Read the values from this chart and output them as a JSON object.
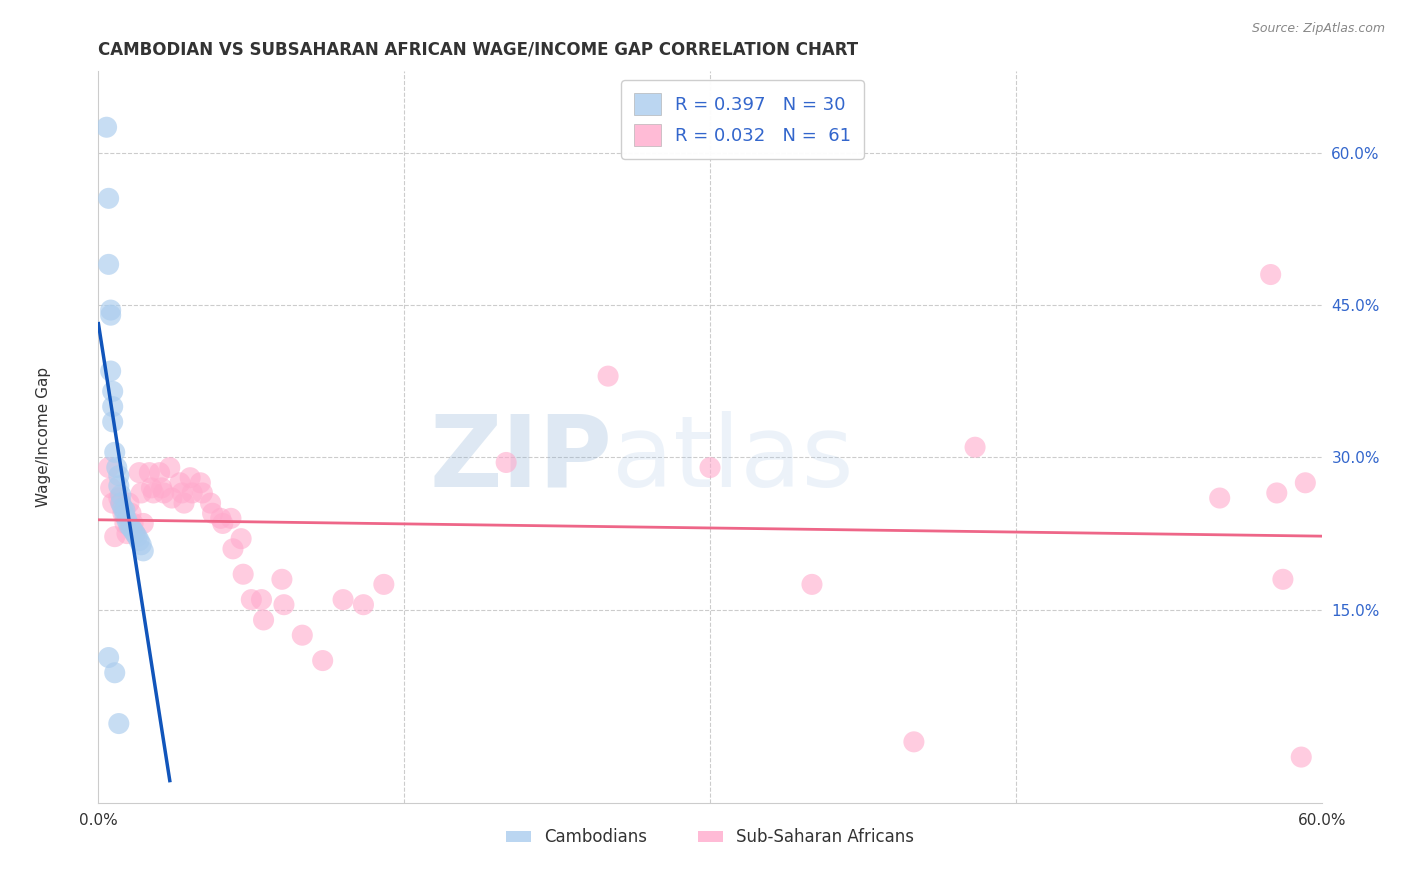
{
  "title": "CAMBODIAN VS SUBSAHARAN AFRICAN WAGE/INCOME GAP CORRELATION CHART",
  "source": "Source: ZipAtlas.com",
  "ylabel": "Wage/Income Gap",
  "R_cambodian": 0.397,
  "N_cambodian": 30,
  "R_african": 0.032,
  "N_african": 61,
  "cambodian_color": "#AACCEE",
  "african_color": "#FFAACC",
  "cambodian_line_color": "#1155BB",
  "african_line_color": "#EE6688",
  "watermark_zip": "ZIP",
  "watermark_atlas": "atlas",
  "legend_cambodian": "Cambodians",
  "legend_african": "Sub-Saharan Africans",
  "xlim": [
    0.0,
    0.6
  ],
  "ylim": [
    -0.04,
    0.68
  ],
  "yticks": [
    0.15,
    0.3,
    0.45,
    0.6
  ],
  "ytick_labels": [
    "15.0%",
    "30.0%",
    "45.0%",
    "60.0%"
  ],
  "xticks": [
    0.0,
    0.15,
    0.3,
    0.45,
    0.6
  ],
  "xtick_labels": [
    "0.0%",
    "",
    "",
    "",
    "60.0%"
  ],
  "cambodian_x": [
    0.004,
    0.005,
    0.005,
    0.006,
    0.006,
    0.006,
    0.007,
    0.007,
    0.007,
    0.008,
    0.009,
    0.01,
    0.01,
    0.011,
    0.011,
    0.012,
    0.013,
    0.013,
    0.014,
    0.015,
    0.016,
    0.017,
    0.018,
    0.019,
    0.02,
    0.021,
    0.022,
    0.005,
    0.008,
    0.01
  ],
  "cambodian_y": [
    0.625,
    0.555,
    0.49,
    0.445,
    0.44,
    0.385,
    0.365,
    0.35,
    0.335,
    0.305,
    0.29,
    0.282,
    0.272,
    0.263,
    0.255,
    0.25,
    0.248,
    0.243,
    0.238,
    0.233,
    0.231,
    0.228,
    0.225,
    0.222,
    0.218,
    0.214,
    0.208,
    0.103,
    0.088,
    0.038
  ],
  "african_x": [
    0.005,
    0.006,
    0.007,
    0.008,
    0.01,
    0.011,
    0.012,
    0.013,
    0.014,
    0.015,
    0.016,
    0.017,
    0.018,
    0.02,
    0.021,
    0.022,
    0.025,
    0.026,
    0.027,
    0.03,
    0.031,
    0.032,
    0.035,
    0.036,
    0.04,
    0.041,
    0.042,
    0.045,
    0.046,
    0.05,
    0.051,
    0.055,
    0.056,
    0.06,
    0.061,
    0.065,
    0.066,
    0.07,
    0.071,
    0.075,
    0.08,
    0.081,
    0.09,
    0.091,
    0.1,
    0.11,
    0.12,
    0.13,
    0.14,
    0.2,
    0.25,
    0.3,
    0.35,
    0.4,
    0.43,
    0.55,
    0.575,
    0.578,
    0.581,
    0.59,
    0.592
  ],
  "african_y": [
    0.29,
    0.27,
    0.255,
    0.222,
    0.26,
    0.255,
    0.245,
    0.235,
    0.225,
    0.255,
    0.245,
    0.235,
    0.225,
    0.285,
    0.265,
    0.235,
    0.285,
    0.27,
    0.265,
    0.285,
    0.27,
    0.265,
    0.29,
    0.26,
    0.275,
    0.265,
    0.255,
    0.28,
    0.265,
    0.275,
    0.265,
    0.255,
    0.245,
    0.24,
    0.235,
    0.24,
    0.21,
    0.22,
    0.185,
    0.16,
    0.16,
    0.14,
    0.18,
    0.155,
    0.125,
    0.1,
    0.16,
    0.155,
    0.175,
    0.295,
    0.38,
    0.29,
    0.175,
    0.02,
    0.31,
    0.26,
    0.48,
    0.265,
    0.18,
    0.005,
    0.275
  ]
}
